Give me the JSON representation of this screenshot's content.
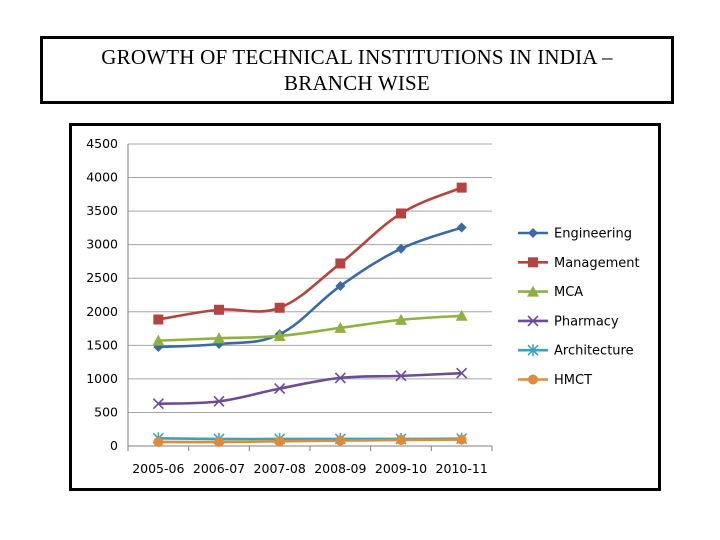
{
  "title": {
    "line1": "GROWTH OF TECHNICAL INSTITUTIONS IN INDIA –",
    "line2": "BRANCH WISE"
  },
  "chart_data": {
    "type": "line",
    "categories": [
      "2005-06",
      "2006-07",
      "2007-08",
      "2008-09",
      "2009-10",
      "2010-11"
    ],
    "ylim": [
      0,
      4500
    ],
    "yticks": [
      0,
      500,
      1000,
      1500,
      2000,
      2500,
      3000,
      3500,
      4000,
      4500
    ],
    "ytick_labels": [
      "0",
      "500",
      "1000",
      "1500",
      "2000",
      "2500",
      "3000",
      "3500",
      "4000",
      "4500"
    ],
    "grid": true,
    "legend_position": "right",
    "series": [
      {
        "name": "Engineering",
        "color": "#3a6aa5",
        "marker": "diamond",
        "values": [
          1475,
          1520,
          1665,
          2385,
          2940,
          3255
        ]
      },
      {
        "name": "Management",
        "color": "#b5433f",
        "marker": "square",
        "values": [
          1885,
          2030,
          2060,
          2720,
          3465,
          3850
        ]
      },
      {
        "name": "MCA",
        "color": "#8fb143",
        "marker": "triangle",
        "values": [
          1570,
          1605,
          1640,
          1760,
          1880,
          1940
        ]
      },
      {
        "name": "Pharmacy",
        "color": "#6d4c97",
        "marker": "x",
        "values": [
          630,
          665,
          855,
          1015,
          1045,
          1085
        ]
      },
      {
        "name": "Architecture",
        "color": "#3aa3b8",
        "marker": "star",
        "values": [
          115,
          105,
          105,
          105,
          105,
          110
        ]
      },
      {
        "name": "HMCT",
        "color": "#e08a3c",
        "marker": "circle",
        "values": [
          60,
          60,
          70,
          80,
          90,
          95
        ]
      }
    ]
  }
}
